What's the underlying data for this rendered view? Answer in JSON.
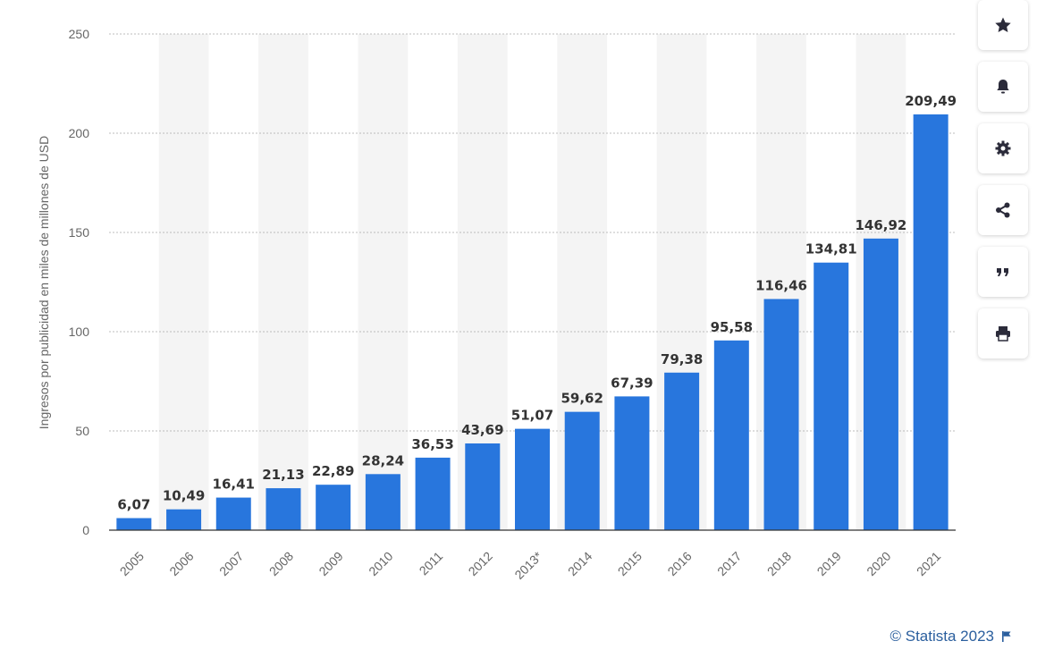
{
  "chart_data": {
    "type": "bar",
    "categories": [
      "2005",
      "2006",
      "2007",
      "2008",
      "2009",
      "2010",
      "2011",
      "2012",
      "2013*",
      "2014",
      "2015",
      "2016",
      "2017",
      "2018",
      "2019",
      "2020",
      "2021"
    ],
    "values": [
      6.07,
      10.49,
      16.41,
      21.13,
      22.89,
      28.24,
      36.53,
      43.69,
      51.07,
      59.62,
      67.39,
      79.38,
      95.58,
      116.46,
      134.81,
      146.92,
      209.49
    ],
    "value_labels": [
      "6,07",
      "10,49",
      "16,41",
      "21,13",
      "22,89",
      "28,24",
      "36,53",
      "43,69",
      "51,07",
      "59,62",
      "67,39",
      "79,38",
      "95,58",
      "116,46",
      "134,81",
      "146,92",
      "209,49"
    ],
    "ylabel": "Ingresos por publicidad en miles de millones de USD",
    "xlabel": "",
    "ylim": [
      0,
      250
    ],
    "yticks": [
      0,
      50,
      100,
      150,
      200,
      250
    ],
    "grid": true,
    "bar_color": "#2876dd"
  },
  "toolbar": [
    {
      "name": "star-icon"
    },
    {
      "name": "bell-icon"
    },
    {
      "name": "gear-icon"
    },
    {
      "name": "share-icon"
    },
    {
      "name": "quote-icon"
    },
    {
      "name": "print-icon"
    }
  ],
  "credit": {
    "text": "© Statista 2023",
    "icon": "flag-icon",
    "color": "#2b5f9e"
  }
}
